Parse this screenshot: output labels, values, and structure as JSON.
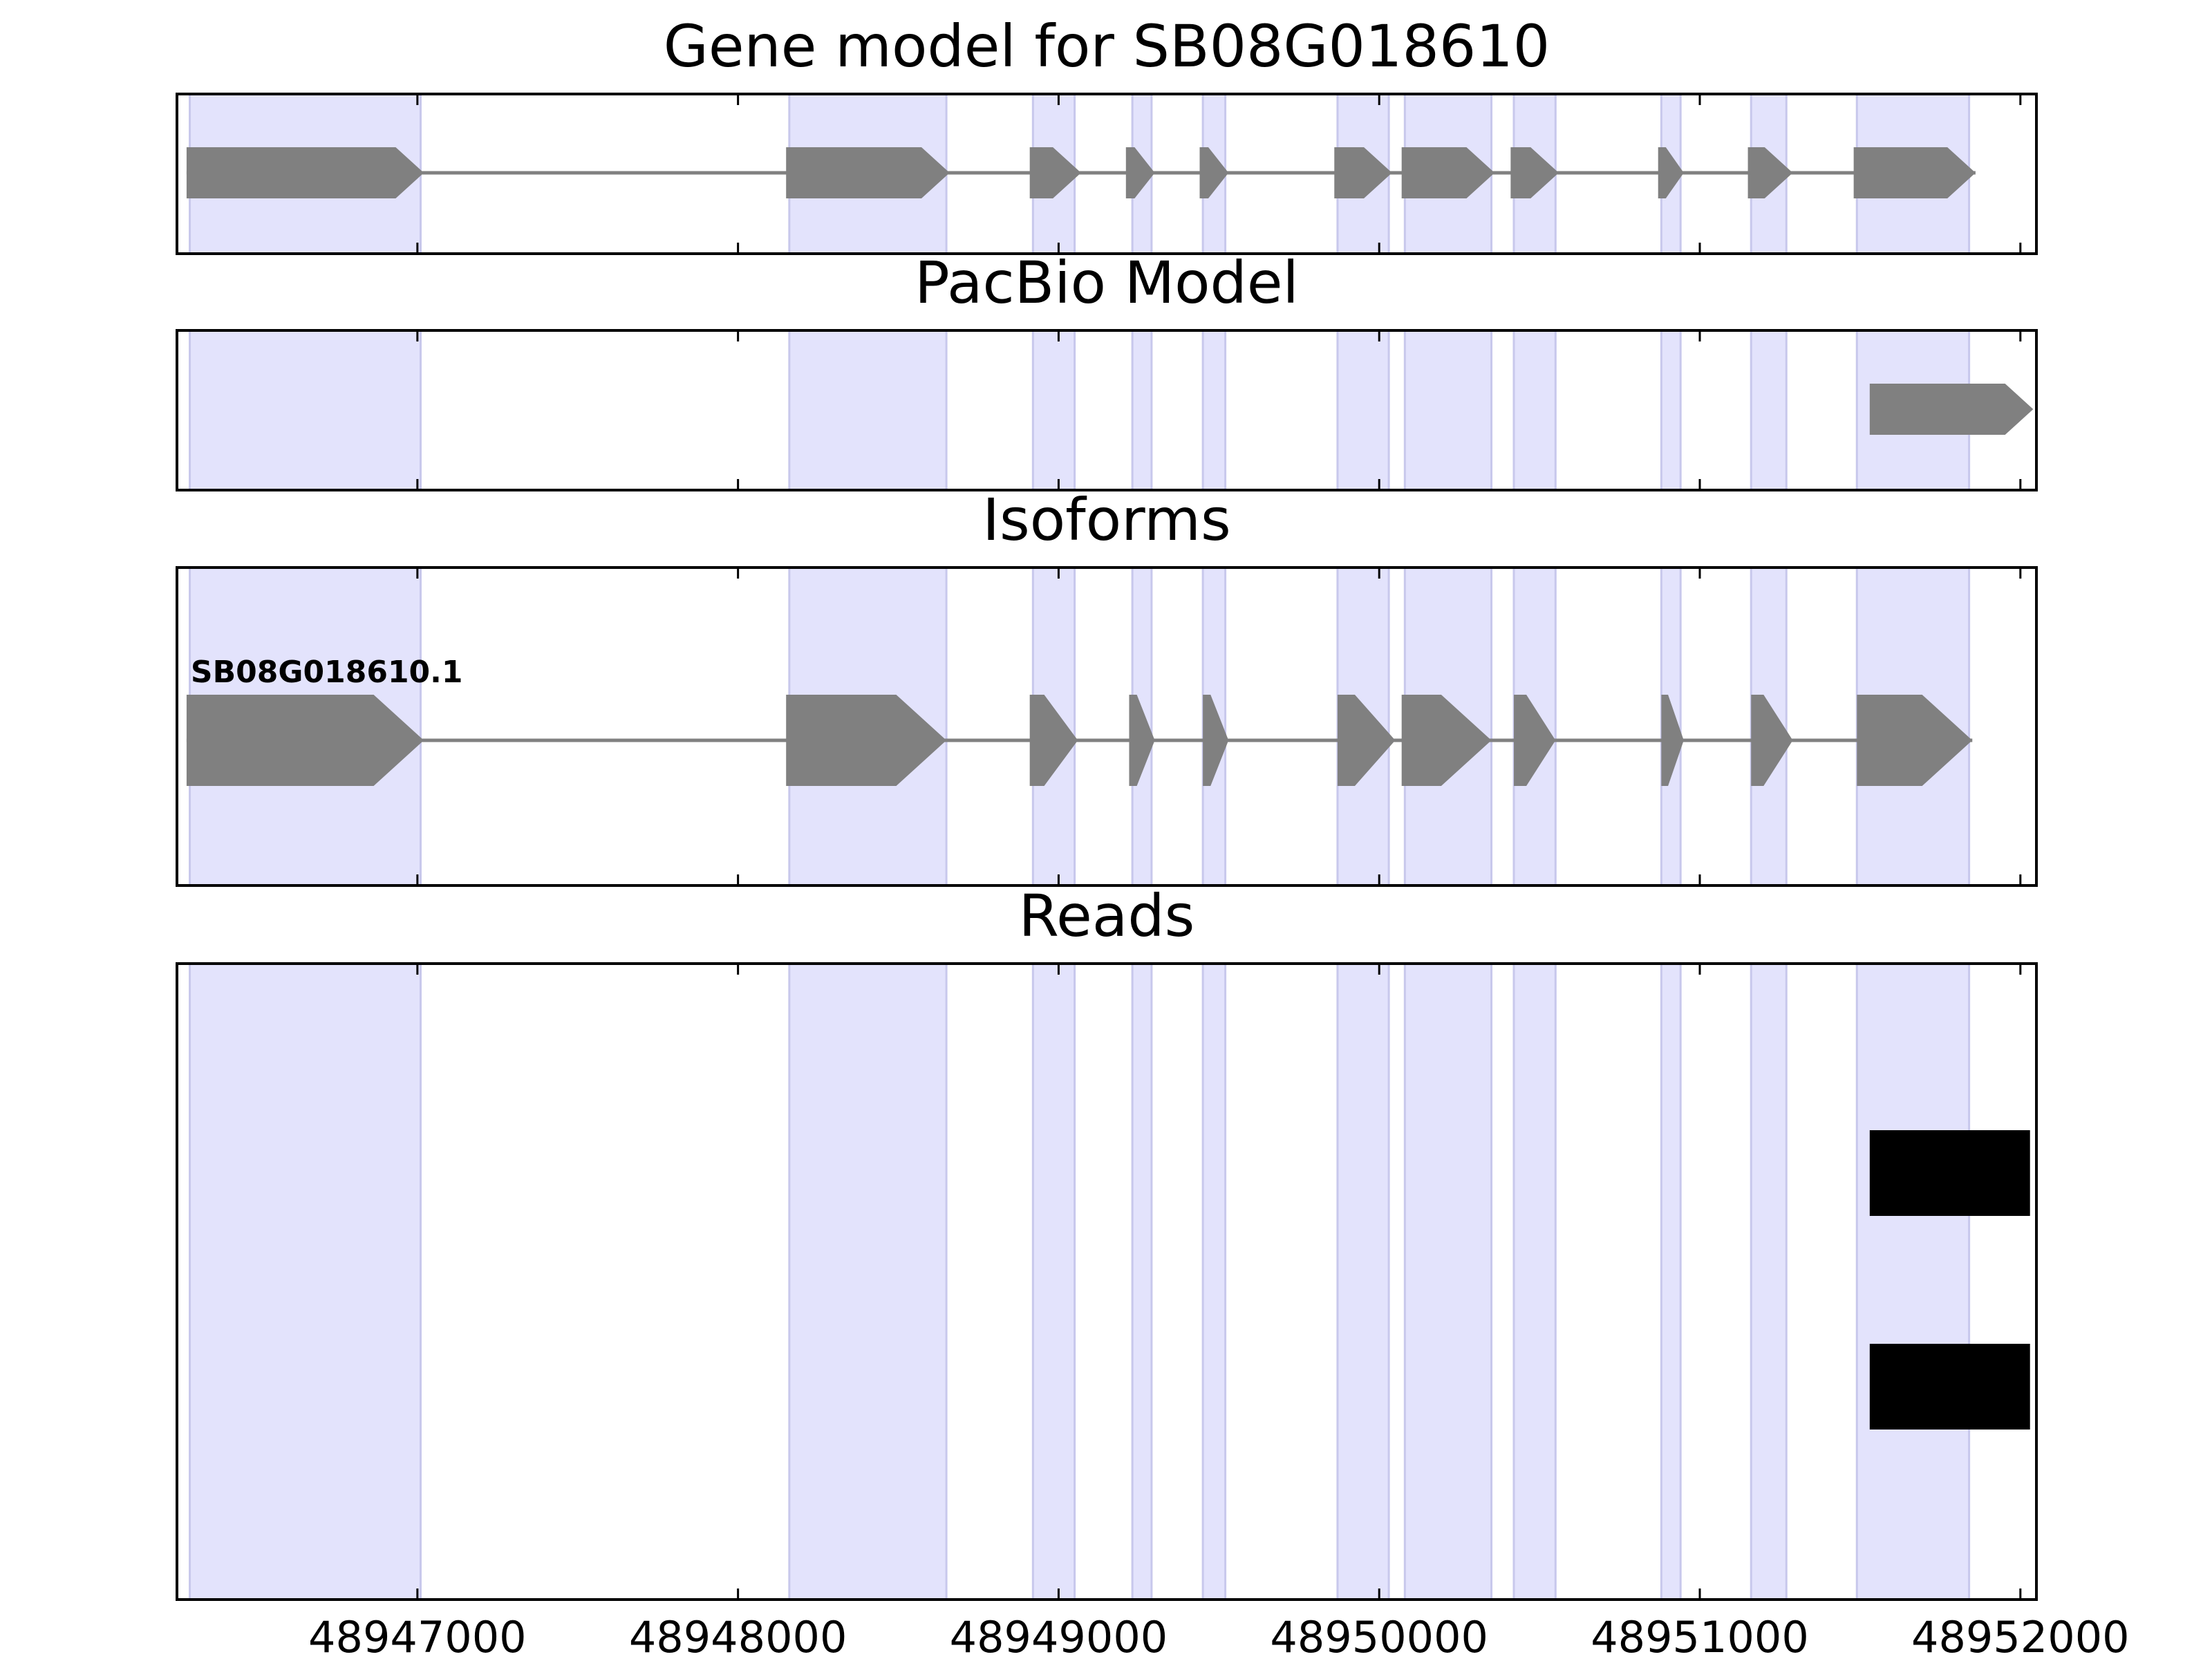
{
  "figure": {
    "background": "#ffffff"
  },
  "chart_data": {
    "type": "gene-track",
    "xlim": [
      48946250,
      48952050
    ],
    "x_ticks": [
      48947000,
      48948000,
      48949000,
      48950000,
      48951000,
      48952000
    ],
    "x_tick_labels": [
      "48947000",
      "48948000",
      "48949000",
      "48950000",
      "48951000",
      "48952000"
    ],
    "colors": {
      "exon_shade": "#e3e3fc",
      "exon_shade_edge": "#c8c8ec",
      "feature": "#808080",
      "read": "#000000",
      "frame": "#000000"
    },
    "exon_regions": [
      [
        48946290,
        48947010
      ],
      [
        48948160,
        48948650
      ],
      [
        48948920,
        48949050
      ],
      [
        48949230,
        48949290
      ],
      [
        48949450,
        48949520
      ],
      [
        48949870,
        48950030
      ],
      [
        48950080,
        48950350
      ],
      [
        48950420,
        48950550
      ],
      [
        48950880,
        48950940
      ],
      [
        48951160,
        48951270
      ],
      [
        48951490,
        48951840
      ]
    ],
    "panels": [
      {
        "title": "Gene model for SB08G018610",
        "models": [
          {
            "label": "",
            "strand": "+",
            "exons": [
              [
                48946280,
                48947020
              ],
              [
                48948150,
                48948660
              ],
              [
                48948910,
                48949070
              ],
              [
                48949210,
                48949300
              ],
              [
                48949440,
                48949530
              ],
              [
                48949860,
                48950040
              ],
              [
                48950070,
                48950360
              ],
              [
                48950410,
                48950560
              ],
              [
                48950870,
                48950950
              ],
              [
                48951150,
                48951290
              ],
              [
                48951480,
                48951860
              ]
            ]
          }
        ]
      },
      {
        "title": "PacBio Model",
        "models": [
          {
            "label": "",
            "strand": "+",
            "exons": [
              [
                48951530,
                48952040
              ]
            ]
          }
        ]
      },
      {
        "title": "Isoforms",
        "models": [
          {
            "label": "SB08G018610.1",
            "strand": "+",
            "exons": [
              [
                48946280,
                48947020
              ],
              [
                48948150,
                48948650
              ],
              [
                48948910,
                48949060
              ],
              [
                48949220,
                48949300
              ],
              [
                48949450,
                48949530
              ],
              [
                48949870,
                48950050
              ],
              [
                48950070,
                48950350
              ],
              [
                48950420,
                48950550
              ],
              [
                48950880,
                48950950
              ],
              [
                48951160,
                48951290
              ],
              [
                48951490,
                48951850
              ]
            ]
          }
        ]
      },
      {
        "title": "Reads",
        "reads": [
          [
            48951530,
            48952030
          ],
          [
            48951530,
            48952030
          ]
        ]
      }
    ]
  }
}
